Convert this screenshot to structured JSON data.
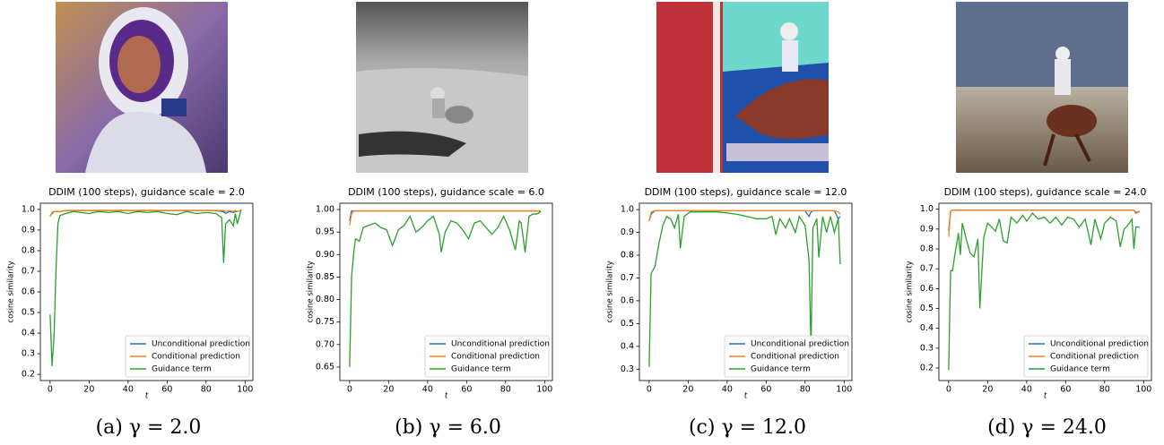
{
  "chart_data": [
    {
      "type": "line",
      "title": "DDIM (100 steps), guidance scale = 2.0",
      "xlabel": "t",
      "ylabel": "cosine similarity",
      "caption": "(a) γ = 2.0",
      "x": [
        0,
        1,
        2,
        3,
        4,
        5,
        8,
        12,
        16,
        20,
        25,
        30,
        35,
        40,
        45,
        50,
        55,
        60,
        65,
        70,
        75,
        80,
        85,
        88,
        89,
        90,
        92,
        94,
        95,
        96,
        98
      ],
      "series": [
        {
          "name": "Unconditional prediction",
          "color": "#1f77b4",
          "values": [
            0.97,
            0.98,
            0.99,
            0.99,
            0.99,
            0.99,
            0.995,
            0.995,
            0.995,
            0.995,
            0.995,
            0.995,
            0.995,
            0.995,
            0.995,
            0.995,
            0.995,
            0.995,
            0.995,
            0.995,
            0.995,
            0.995,
            0.995,
            0.99,
            0.99,
            0.98,
            0.99,
            0.985,
            0.99,
            0.99,
            0.995
          ]
        },
        {
          "name": "Conditional prediction",
          "color": "#ff7f0e",
          "values": [
            0.965,
            0.985,
            0.99,
            0.99,
            0.99,
            0.99,
            0.995,
            0.995,
            0.995,
            0.995,
            0.995,
            0.995,
            0.995,
            0.995,
            0.995,
            0.995,
            0.995,
            0.995,
            0.995,
            0.995,
            0.995,
            0.995,
            0.995,
            0.995,
            0.995,
            0.99,
            0.995,
            0.99,
            0.995,
            0.99,
            0.995
          ]
        },
        {
          "name": "Guidance term",
          "color": "#2ca02c",
          "values": [
            0.49,
            0.24,
            0.38,
            0.7,
            0.93,
            0.97,
            0.98,
            0.99,
            0.985,
            0.98,
            0.99,
            0.985,
            0.99,
            0.98,
            0.99,
            0.985,
            0.99,
            0.98,
            0.975,
            0.99,
            0.98,
            0.985,
            0.98,
            0.96,
            0.74,
            0.93,
            0.95,
            0.92,
            0.98,
            0.93,
            1.0
          ]
        }
      ],
      "xlim": [
        -5,
        104
      ],
      "xticks": [
        0,
        20,
        40,
        60,
        80,
        100
      ],
      "ylim": [
        0.17,
        1.03
      ],
      "yticks": [
        0.2,
        0.3,
        0.4,
        0.5,
        0.6,
        0.7,
        0.8,
        0.9,
        {
          "value": 1,
          "label": "1.0"
        }
      ],
      "legend": "lower right"
    },
    {
      "type": "line",
      "title": "DDIM (100 steps), guidance scale = 6.0",
      "xlabel": "t",
      "ylabel": "cosine similarity",
      "caption": "(b) γ = 6.0",
      "x": [
        0,
        1,
        2,
        3,
        5,
        7,
        10,
        13,
        16,
        19,
        22,
        25,
        28,
        31,
        34,
        37,
        40,
        43,
        46,
        47,
        49,
        52,
        55,
        58,
        61,
        64,
        67,
        70,
        73,
        76,
        79,
        82,
        85,
        87,
        88,
        90,
        92,
        94,
        96,
        98
      ],
      "series": [
        {
          "name": "Unconditional prediction",
          "color": "#1f77b4",
          "values": [
            0.975,
            0.997,
            0.997,
            0.997,
            0.997,
            0.997,
            0.997,
            0.997,
            0.997,
            0.997,
            0.997,
            0.997,
            0.997,
            0.997,
            0.997,
            0.997,
            0.997,
            0.997,
            0.997,
            0.997,
            0.997,
            0.997,
            0.997,
            0.997,
            0.997,
            0.997,
            0.997,
            0.997,
            0.997,
            0.997,
            0.997,
            0.997,
            0.997,
            0.997,
            0.997,
            0.997,
            0.997,
            0.997,
            0.997,
            0.996
          ]
        },
        {
          "name": "Conditional prediction",
          "color": "#ff7f0e",
          "values": [
            0.965,
            0.99,
            0.997,
            0.997,
            0.997,
            0.997,
            0.997,
            0.997,
            0.997,
            0.997,
            0.997,
            0.997,
            0.997,
            0.997,
            0.997,
            0.997,
            0.997,
            0.997,
            0.997,
            0.997,
            0.997,
            0.997,
            0.997,
            0.997,
            0.997,
            0.997,
            0.997,
            0.997,
            0.997,
            0.997,
            0.997,
            0.997,
            0.997,
            0.997,
            0.997,
            0.997,
            0.997,
            0.997,
            0.997,
            0.997
          ]
        },
        {
          "name": "Guidance term",
          "color": "#2ca02c",
          "values": [
            0.65,
            0.85,
            0.9,
            0.935,
            0.93,
            0.96,
            0.965,
            0.97,
            0.96,
            0.955,
            0.92,
            0.955,
            0.965,
            0.985,
            0.95,
            0.96,
            0.975,
            0.985,
            0.945,
            0.905,
            0.95,
            0.975,
            0.97,
            0.955,
            0.935,
            0.97,
            0.975,
            0.96,
            0.945,
            0.96,
            0.985,
            0.955,
            0.91,
            0.975,
            0.97,
            0.905,
            0.985,
            0.99,
            0.99,
            0.995
          ]
        }
      ],
      "xlim": [
        -5,
        104
      ],
      "xticks": [
        0,
        20,
        40,
        60,
        80,
        100
      ],
      "ylim": [
        0.62,
        1.014
      ],
      "yticks": [
        0.65,
        {
          "value": 0.7,
          "label": "0.70"
        },
        0.75,
        {
          "value": 0.8,
          "label": "0.80"
        },
        0.85,
        {
          "value": 0.9,
          "label": "0.90"
        },
        0.95,
        {
          "value": 1,
          "label": "1.00"
        }
      ],
      "legend": "lower right"
    },
    {
      "type": "line",
      "title": "DDIM (100 steps), guidance scale = 12.0",
      "xlabel": "t",
      "ylabel": "cosine similarity",
      "caption": "(c) γ = 12.0",
      "x": [
        0,
        1,
        3,
        5,
        7,
        9,
        11,
        13,
        15,
        16,
        18,
        21,
        25,
        30,
        35,
        40,
        45,
        50,
        55,
        60,
        63,
        65,
        67,
        70,
        72,
        75,
        77,
        80,
        82,
        83,
        84,
        86,
        87,
        89,
        91,
        93,
        95,
        97,
        98
      ],
      "series": [
        {
          "name": "Unconditional prediction",
          "color": "#1f77b4",
          "values": [
            0.95,
            0.98,
            0.995,
            0.995,
            0.995,
            0.995,
            0.995,
            0.995,
            0.995,
            0.995,
            0.995,
            0.995,
            0.995,
            0.995,
            0.995,
            0.995,
            0.995,
            0.995,
            0.995,
            0.995,
            0.995,
            0.995,
            0.995,
            0.995,
            0.995,
            0.995,
            0.995,
            0.995,
            0.97,
            0.99,
            0.995,
            0.995,
            0.995,
            0.995,
            0.995,
            0.995,
            0.995,
            0.96,
            0.97
          ]
        },
        {
          "name": "Conditional prediction",
          "color": "#ff7f0e",
          "values": [
            0.95,
            0.99,
            0.995,
            0.995,
            0.995,
            0.995,
            0.995,
            0.995,
            0.995,
            0.995,
            0.995,
            0.995,
            0.995,
            0.995,
            0.995,
            0.995,
            0.995,
            0.995,
            0.995,
            0.995,
            0.995,
            0.995,
            0.995,
            0.995,
            0.995,
            0.995,
            0.995,
            0.995,
            0.995,
            0.995,
            0.995,
            0.995,
            0.995,
            0.995,
            0.995,
            0.995,
            0.995,
            0.99,
            0.98
          ]
        },
        {
          "name": "Guidance term",
          "color": "#2ca02c",
          "values": [
            0.31,
            0.72,
            0.75,
            0.85,
            0.93,
            0.97,
            0.96,
            0.92,
            0.98,
            0.83,
            0.97,
            0.99,
            0.99,
            0.99,
            0.99,
            0.985,
            0.98,
            0.97,
            0.96,
            0.96,
            0.97,
            0.89,
            0.96,
            0.92,
            0.96,
            0.9,
            0.97,
            0.93,
            0.78,
            0.39,
            0.92,
            0.96,
            0.79,
            0.97,
            0.9,
            0.97,
            0.9,
            0.96,
            0.76
          ]
        }
      ],
      "xlim": [
        -5,
        104
      ],
      "xticks": [
        0,
        20,
        40,
        60,
        80,
        100
      ],
      "ylim": [
        0.25,
        1.028
      ],
      "yticks": [
        0.3,
        0.4,
        0.5,
        0.6,
        0.7,
        0.8,
        0.9,
        {
          "value": 1,
          "label": "1.0"
        }
      ],
      "legend": "lower right"
    },
    {
      "type": "line",
      "title": "DDIM (100 steps), guidance scale = 24.0",
      "xlabel": "t",
      "ylabel": "cosine similarity",
      "caption": "(d) γ = 24.0",
      "x": [
        0,
        1,
        2,
        3,
        5,
        6,
        7,
        9,
        11,
        13,
        15,
        16,
        18,
        20,
        22,
        24,
        26,
        28,
        30,
        32,
        35,
        38,
        40,
        43,
        46,
        49,
        52,
        55,
        58,
        61,
        64,
        67,
        70,
        73,
        75,
        78,
        80,
        83,
        86,
        88,
        90,
        92,
        94,
        95,
        96,
        98
      ],
      "series": [
        {
          "name": "Unconditional prediction",
          "color": "#1f77b4",
          "values": [
            0.89,
            0.99,
            0.995,
            0.995,
            0.995,
            0.995,
            0.995,
            0.995,
            0.995,
            0.995,
            0.995,
            0.995,
            0.995,
            0.995,
            0.995,
            0.995,
            0.995,
            0.995,
            0.995,
            0.995,
            0.995,
            0.995,
            0.995,
            0.995,
            0.995,
            0.995,
            0.995,
            0.995,
            0.995,
            0.995,
            0.995,
            0.995,
            0.995,
            0.995,
            0.995,
            0.995,
            0.995,
            0.995,
            0.995,
            0.995,
            0.995,
            0.995,
            0.995,
            0.995,
            0.98,
            0.99
          ]
        },
        {
          "name": "Conditional prediction",
          "color": "#ff7f0e",
          "values": [
            0.86,
            0.99,
            0.995,
            0.995,
            0.995,
            0.995,
            0.995,
            0.995,
            0.995,
            0.995,
            0.995,
            0.995,
            0.995,
            0.995,
            0.995,
            0.995,
            0.995,
            0.995,
            0.995,
            0.995,
            0.995,
            0.995,
            0.995,
            0.995,
            0.995,
            0.995,
            0.995,
            0.995,
            0.995,
            0.995,
            0.995,
            0.995,
            0.995,
            0.995,
            0.995,
            0.995,
            0.995,
            0.995,
            0.995,
            0.995,
            0.995,
            0.995,
            0.995,
            0.995,
            0.985,
            0.99
          ]
        },
        {
          "name": "Guidance term",
          "color": "#2ca02c",
          "values": [
            0.19,
            0.69,
            0.69,
            0.76,
            0.88,
            0.77,
            0.93,
            0.85,
            0.78,
            0.76,
            0.85,
            0.5,
            0.86,
            0.93,
            0.91,
            0.89,
            0.95,
            0.84,
            0.83,
            0.96,
            0.93,
            0.97,
            0.94,
            0.98,
            0.95,
            0.96,
            0.93,
            0.96,
            0.92,
            0.96,
            0.95,
            0.91,
            0.95,
            0.82,
            0.95,
            0.85,
            0.93,
            0.96,
            0.94,
            0.81,
            0.9,
            0.92,
            0.95,
            0.8,
            0.91,
            0.91
          ]
        }
      ],
      "xlim": [
        -5,
        104
      ],
      "xticks": [
        0,
        20,
        40,
        60,
        80,
        100
      ],
      "ylim": [
        0.137,
        1.03
      ],
      "yticks": [
        0.2,
        0.3,
        0.4,
        0.5,
        0.6,
        0.7,
        0.8,
        0.9,
        {
          "value": 1,
          "label": "1.0"
        }
      ],
      "legend": "lower right"
    }
  ]
}
